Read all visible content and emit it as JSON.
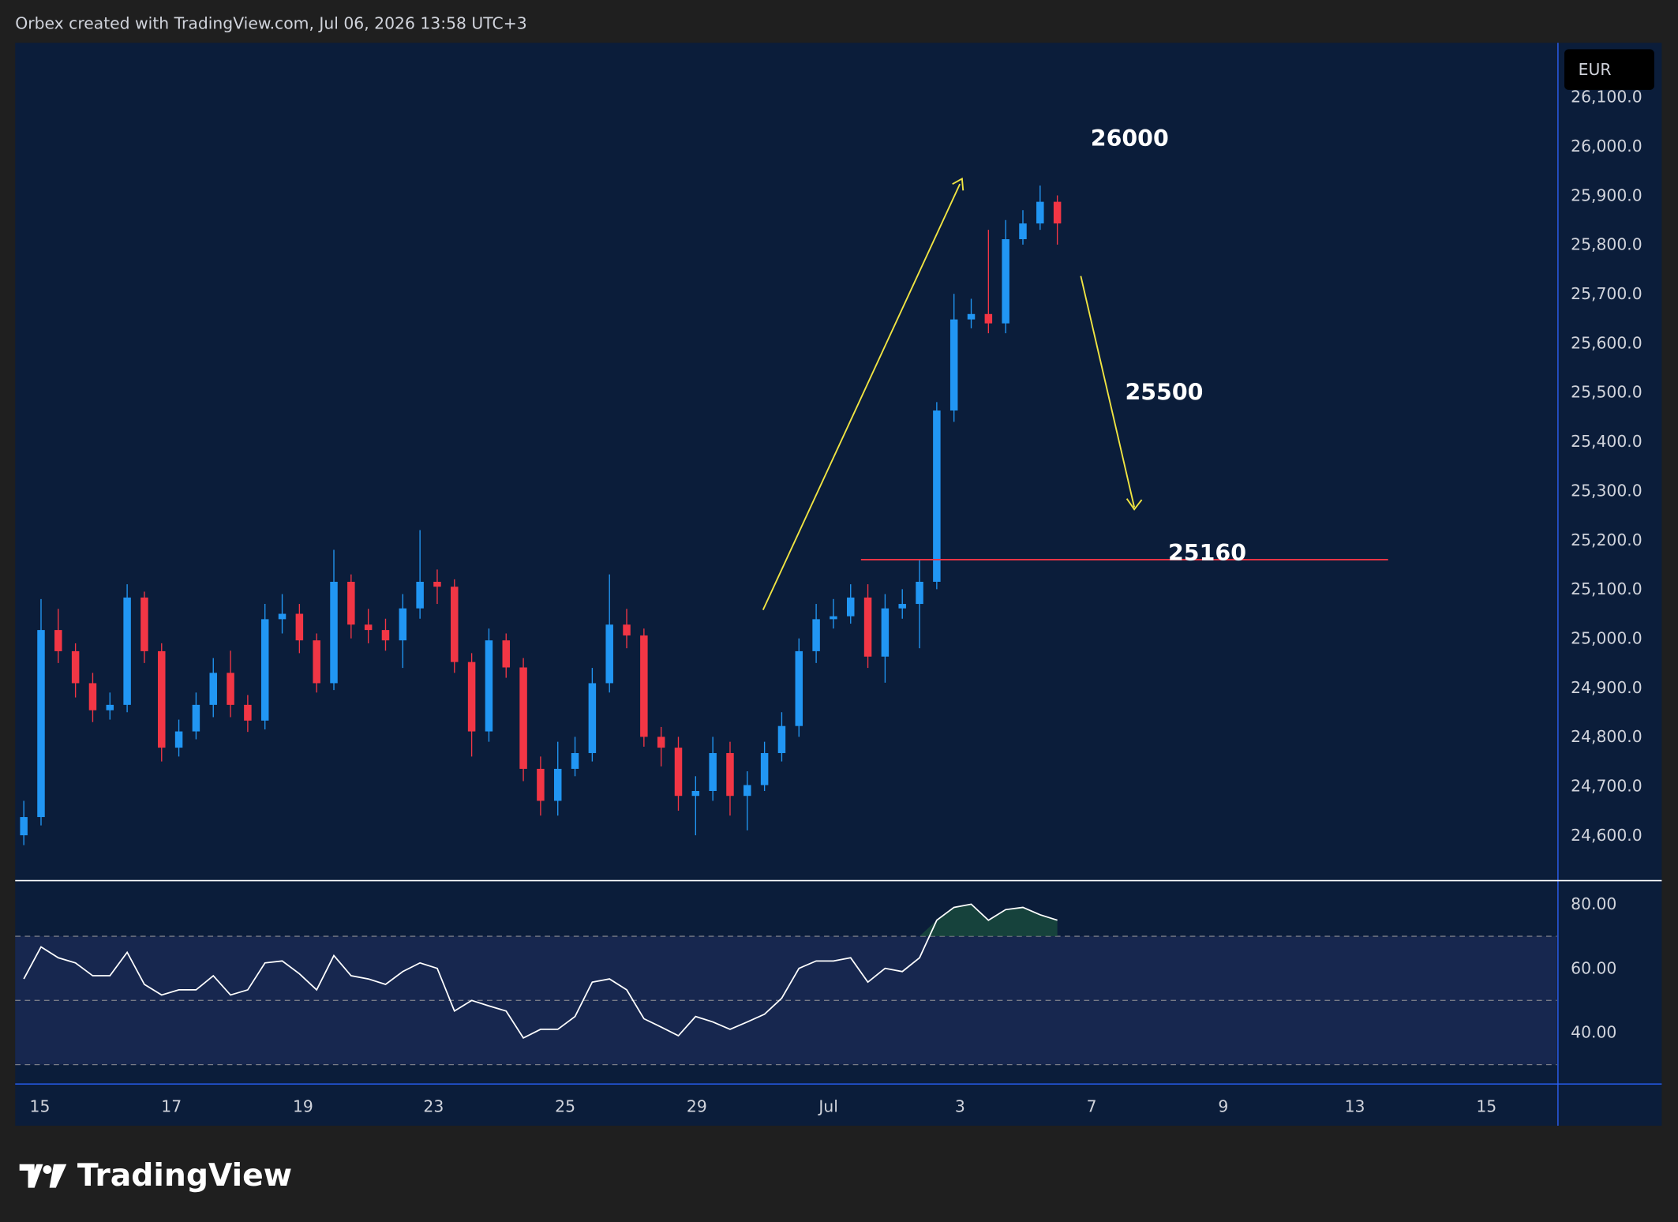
{
  "header": "Orbex created with TradingView.com, Jul 06, 2026 13:58 UTC+3",
  "currency": "EUR",
  "logo": "TradingView",
  "chart_data": {
    "type": "candlestick",
    "up_color": "#2196f3",
    "down_color": "#f23645",
    "open": [
      24600,
      24637,
      25017,
      24974,
      24909,
      24854,
      24865,
      25083,
      24974,
      24778,
      24811,
      24865,
      24930,
      24865,
      24833,
      25039,
      25050,
      24996,
      24909,
      25115,
      25028,
      25017,
      24996,
      25061,
      25115,
      25105,
      24952,
      24811,
      24996,
      24941,
      24735,
      24670,
      24735,
      24767,
      24909,
      25028,
      25006,
      24800,
      24778,
      24680,
      24690,
      24767,
      24680,
      24702,
      24767,
      24822,
      24974,
      25039,
      25045,
      25083,
      24963,
      25061,
      25070,
      25115,
      25463,
      25648,
      25659,
      25640,
      25811,
      25843,
      25887
    ],
    "high": [
      24670,
      25080,
      25060,
      24990,
      24930,
      24890,
      25110,
      25095,
      24990,
      24835,
      24890,
      24960,
      24975,
      24885,
      25070,
      25090,
      25070,
      25010,
      25180,
      25130,
      25060,
      25040,
      25090,
      25220,
      25140,
      25120,
      24970,
      25020,
      25010,
      24960,
      24760,
      24790,
      24800,
      24940,
      25130,
      25060,
      25020,
      24820,
      24800,
      24720,
      24800,
      24790,
      24730,
      24790,
      24850,
      25000,
      25070,
      25080,
      25110,
      25110,
      25090,
      25100,
      25160,
      25480,
      25700,
      25690,
      25830,
      25850,
      25870,
      25920,
      25900
    ],
    "low": [
      24580,
      24620,
      24950,
      24880,
      24830,
      24835,
      24850,
      24950,
      24750,
      24760,
      24795,
      24840,
      24840,
      24810,
      24815,
      25010,
      24970,
      24890,
      24895,
      25000,
      24990,
      24975,
      24940,
      25040,
      25070,
      24930,
      24760,
      24790,
      24920,
      24710,
      24640,
      24640,
      24720,
      24750,
      24890,
      24980,
      24780,
      24740,
      24650,
      24600,
      24670,
      24640,
      24610,
      24690,
      24750,
      24800,
      24950,
      25020,
      25030,
      24940,
      24910,
      25040,
      24980,
      25100,
      25440,
      25630,
      25620,
      25620,
      25800,
      25830,
      25800
    ],
    "close": [
      24637,
      25017,
      24974,
      24909,
      24854,
      24865,
      25083,
      24974,
      24778,
      24811,
      24865,
      24930,
      24865,
      24833,
      25039,
      25050,
      24996,
      24909,
      25115,
      25028,
      25017,
      24996,
      25061,
      25115,
      25105,
      24952,
      24811,
      24996,
      24941,
      24735,
      24670,
      24735,
      24767,
      24909,
      25028,
      25006,
      24800,
      24778,
      24680,
      24690,
      24767,
      24680,
      24702,
      24767,
      24822,
      24974,
      25039,
      25045,
      25083,
      24963,
      25061,
      25070,
      25115,
      25463,
      25648,
      25659,
      25640,
      25811,
      25843,
      25887,
      25843
    ],
    "xlim": [
      -0.5,
      89
    ],
    "xticks": [
      {
        "value": 0.93,
        "label": "15"
      },
      {
        "value": 8.57,
        "label": "17"
      },
      {
        "value": 16.21,
        "label": "19"
      },
      {
        "value": 23.79,
        "label": "23"
      },
      {
        "value": 31.43,
        "label": "25"
      },
      {
        "value": 39.07,
        "label": "29"
      },
      {
        "value": 46.71,
        "label": "Jul"
      },
      {
        "value": 54.35,
        "label": "3"
      },
      {
        "value": 61.99,
        "label": "7"
      },
      {
        "value": 69.63,
        "label": "9"
      },
      {
        "value": 77.27,
        "label": "13"
      },
      {
        "value": 84.91,
        "label": "15"
      }
    ],
    "ylim": [
      24510,
      26210
    ],
    "yticks": [
      {
        "value": 24600,
        "label": "24,600.0"
      },
      {
        "value": 24700,
        "label": "24,700.0"
      },
      {
        "value": 24800,
        "label": "24,800.0"
      },
      {
        "value": 24900,
        "label": "24,900.0"
      },
      {
        "value": 25000,
        "label": "25,000.0"
      },
      {
        "value": 25100,
        "label": "25,100.0"
      },
      {
        "value": 25200,
        "label": "25,200.0"
      },
      {
        "value": 25300,
        "label": "25,300.0"
      },
      {
        "value": 25400,
        "label": "25,400.0"
      },
      {
        "value": 25500,
        "label": "25,500.0"
      },
      {
        "value": 25600,
        "label": "25,600.0"
      },
      {
        "value": 25700,
        "label": "25,700.0"
      },
      {
        "value": 25800,
        "label": "25,800.0"
      },
      {
        "value": 25900,
        "label": "25,900.0"
      },
      {
        "value": 26000,
        "label": "26,000.0"
      },
      {
        "value": 26100,
        "label": "26,100.0"
      }
    ],
    "hline": {
      "value": 25160,
      "start": 48.6,
      "end": 79.2,
      "color": "#f23645"
    },
    "annotations": [
      {
        "text": "26000",
        "x": 64.2,
        "price": 26000
      },
      {
        "text": "25500",
        "x": 66.2,
        "price": 25485
      },
      {
        "text": "25160",
        "x": 68.7,
        "price": 25158
      }
    ],
    "rsi": {
      "values": [
        56.7,
        66.7,
        63.3,
        61.7,
        57.7,
        57.7,
        65,
        55,
        51.7,
        53.3,
        53.3,
        57.7,
        51.7,
        53.3,
        61.7,
        62.3,
        58.3,
        53.3,
        64,
        57.7,
        56.7,
        55,
        59,
        61.7,
        60,
        46.7,
        50,
        48.3,
        46.7,
        38.3,
        41,
        41,
        45,
        55.7,
        56.7,
        53.3,
        44.3,
        41.7,
        39,
        45,
        43.3,
        41,
        43.3,
        45.7,
        50.7,
        60,
        62.3,
        62.3,
        63.3,
        55.7,
        60,
        59,
        63.3,
        75,
        79,
        80,
        75,
        78.3,
        79,
        76.7,
        75
      ],
      "ylim": [
        24.3,
        87
      ],
      "yticks": [
        {
          "value": 80,
          "label": "80.00"
        },
        {
          "value": 60,
          "label": "60.00"
        },
        {
          "value": 40,
          "label": "40.00"
        }
      ],
      "levels": [
        70,
        50,
        30
      ],
      "color": "#ffffff"
    }
  }
}
